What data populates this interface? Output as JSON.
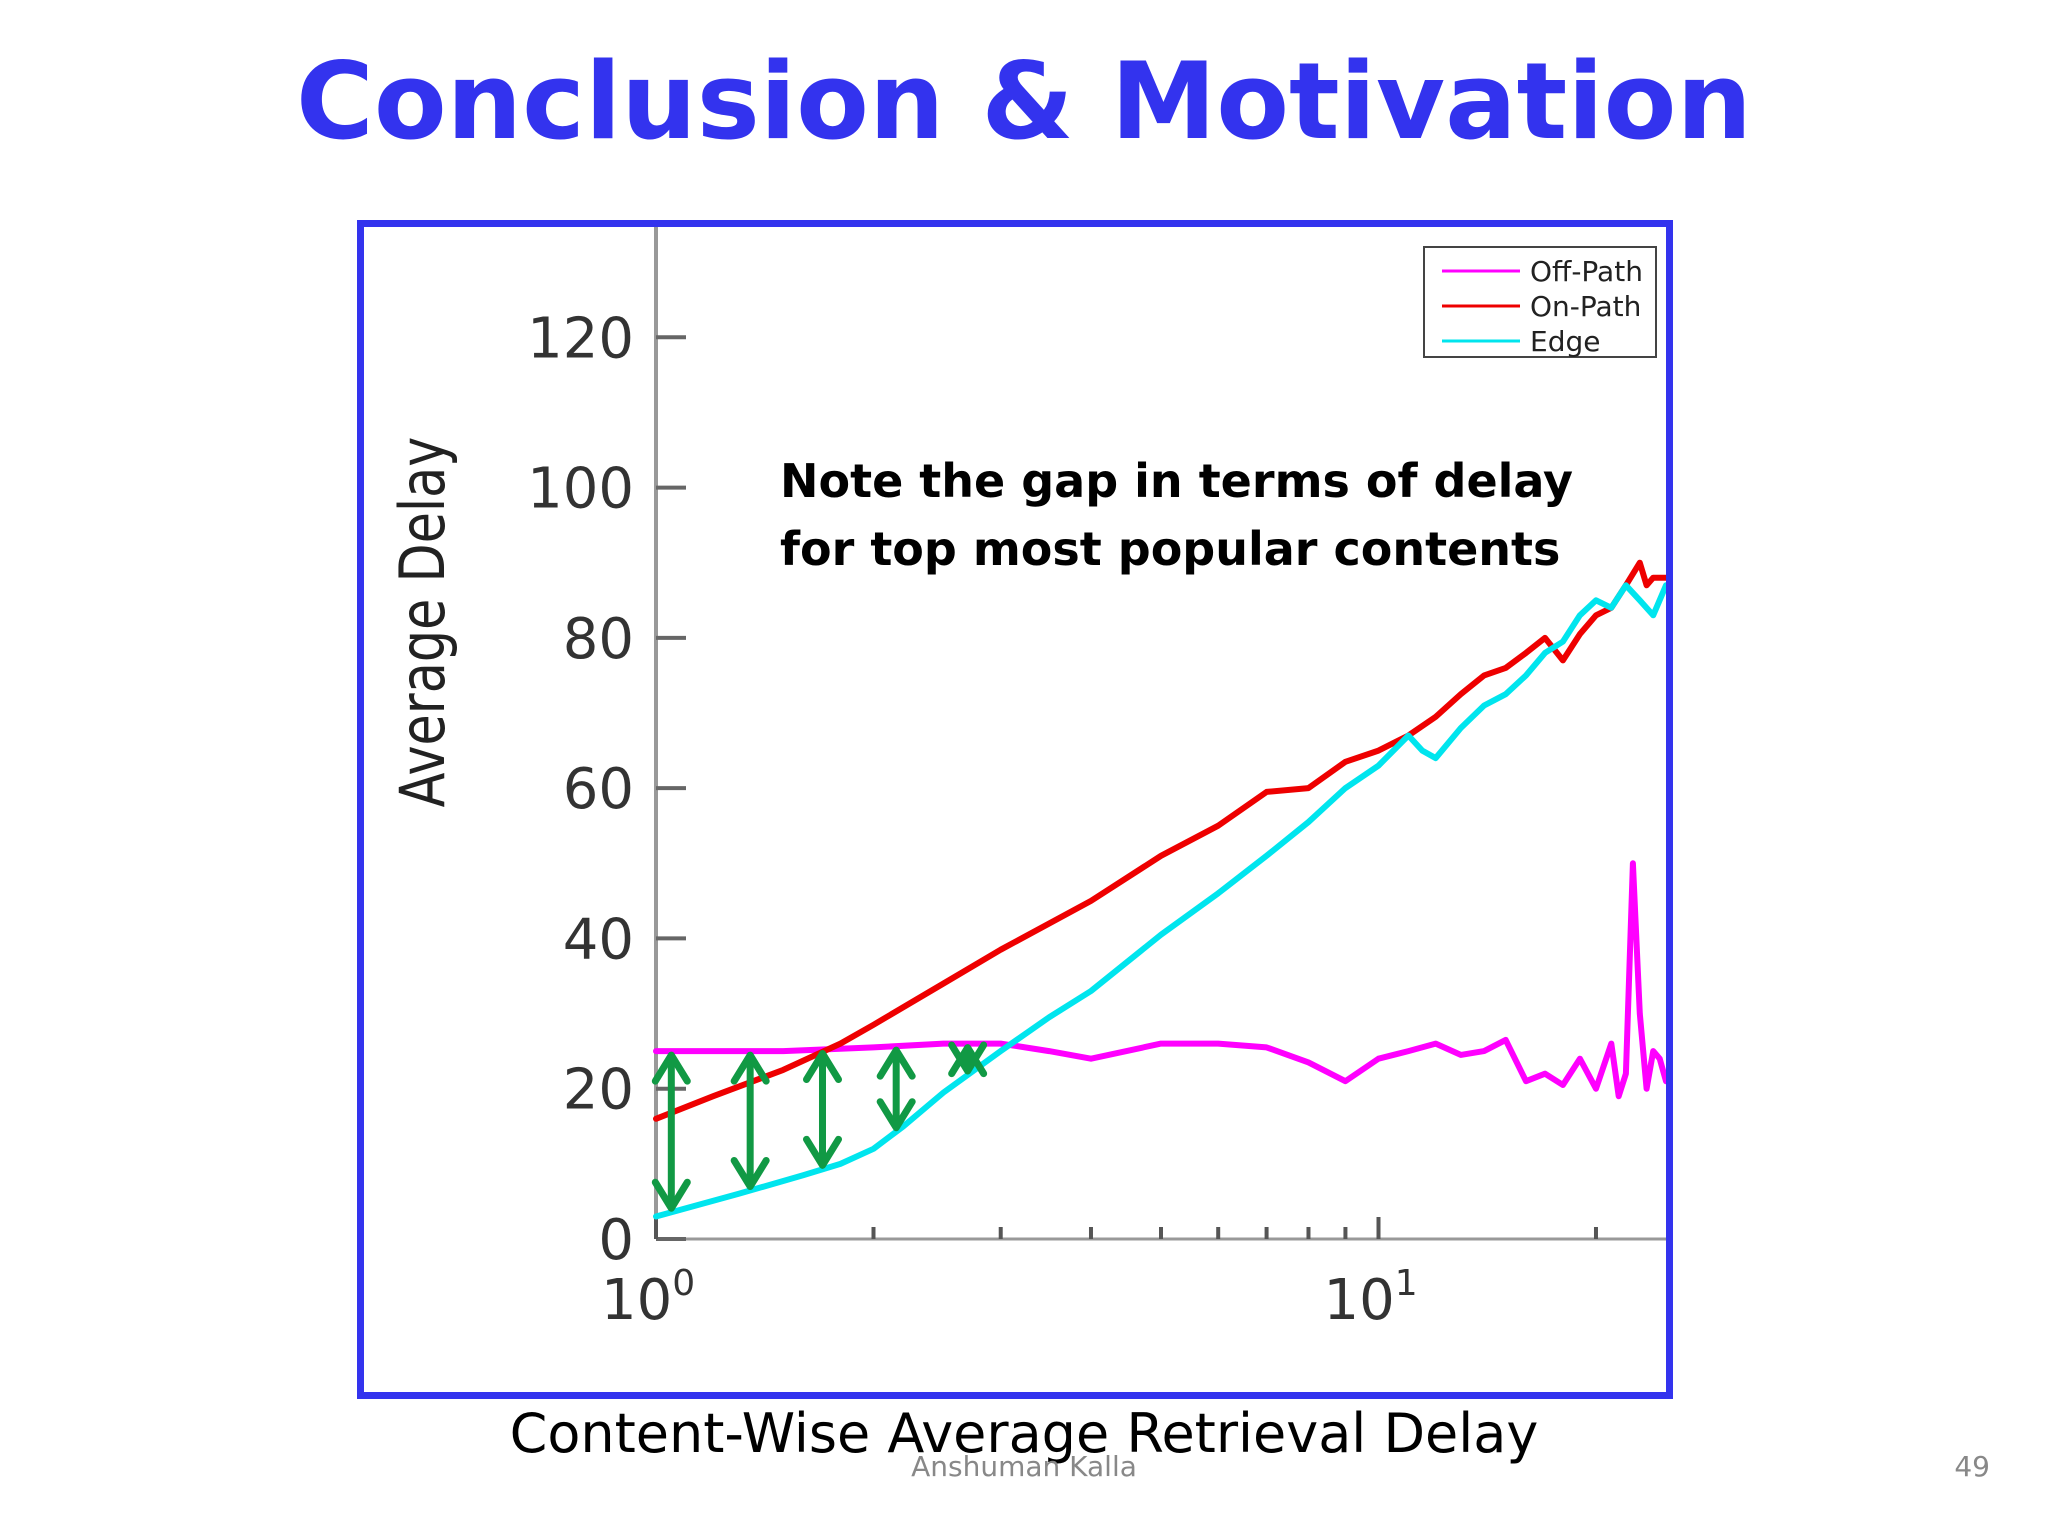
{
  "slide": {
    "title": "Conclusion & Motivation",
    "caption": "Content-Wise Average Retrieval Delay",
    "author": "Anshuman Kalla",
    "page_number": "49"
  },
  "colors": {
    "title": "#3333ee",
    "frame": "#3333ee",
    "off_path": "#ff00ff",
    "on_path": "#ee0000",
    "edge": "#00e5ee",
    "gap_arrow": "#119944"
  },
  "chart_data": {
    "type": "line",
    "ylabel": "Average Delay",
    "xlabel": "",
    "xscale": "log",
    "xlim": [
      1,
      25
    ],
    "ylim": [
      0,
      140
    ],
    "yticks": [
      0,
      20,
      40,
      60,
      80,
      100,
      120
    ],
    "ytick_labels": [
      "0",
      "20",
      "40",
      "60",
      "80",
      "100",
      "120"
    ],
    "xticks_major": [
      {
        "value": 1,
        "base": "10",
        "exp": "0"
      },
      {
        "value": 10,
        "base": "10",
        "exp": "1"
      }
    ],
    "xticks_minor": [
      2,
      3,
      4,
      5,
      6,
      7,
      8,
      9,
      20
    ],
    "legend_position": "top-right",
    "annotation": [
      "Note the gap in terms of delay",
      "for top most popular contents"
    ],
    "gap_markers_x": [
      1.05,
      1.35,
      1.7,
      2.15,
      2.7
    ],
    "series": [
      {
        "name": "Off-Path",
        "color": "#ff00ff",
        "x": [
          1,
          1.5,
          2,
          2.5,
          3,
          3.5,
          4,
          5,
          6,
          7,
          8,
          9,
          10,
          11,
          12,
          13,
          14,
          15,
          16,
          17,
          18,
          19,
          20,
          21,
          21.5,
          22,
          22.5,
          23,
          23.5,
          24,
          24.5,
          25
        ],
        "y": [
          25,
          25,
          25.5,
          26,
          26,
          25,
          24,
          26,
          26,
          25.5,
          23.5,
          21,
          24,
          25,
          26,
          24.5,
          25,
          26.5,
          21,
          22,
          20.5,
          24,
          20,
          26,
          19,
          22,
          50,
          30,
          20,
          25,
          24,
          21
        ]
      },
      {
        "name": "On-Path",
        "color": "#ee0000",
        "x": [
          1,
          1.2,
          1.5,
          1.8,
          2,
          2.5,
          3,
          4,
          5,
          6,
          7,
          8,
          9,
          10,
          11,
          12,
          13,
          14,
          15,
          16,
          17,
          18,
          19,
          20,
          21,
          22,
          23,
          23.5,
          24,
          25
        ],
        "y": [
          16,
          19,
          22.5,
          26,
          28.5,
          34,
          38.5,
          45,
          51,
          55,
          59.5,
          60,
          63.5,
          65,
          67,
          69.5,
          72.5,
          75,
          76,
          78,
          80,
          77,
          80.5,
          83,
          84,
          87,
          90,
          87,
          88,
          88
        ]
      },
      {
        "name": "Edge",
        "color": "#00e5ee",
        "x": [
          1,
          1.3,
          1.6,
          1.8,
          2,
          2.2,
          2.5,
          3,
          3.5,
          4,
          5,
          6,
          7,
          8,
          9,
          10,
          11,
          11.5,
          12,
          13,
          14,
          15,
          16,
          17,
          18,
          19,
          20,
          21,
          22,
          23,
          24,
          25
        ],
        "y": [
          3,
          6,
          8.5,
          10,
          12,
          15,
          19.5,
          25,
          29.5,
          33,
          40.5,
          46,
          51,
          55.5,
          60,
          63,
          67,
          65,
          64,
          68,
          71,
          72.5,
          75,
          78,
          79.5,
          83,
          85,
          84,
          87,
          85,
          83,
          87
        ]
      }
    ]
  }
}
